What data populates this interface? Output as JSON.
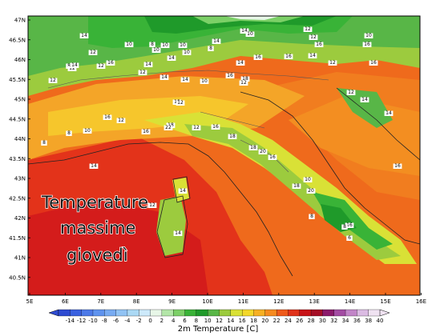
{
  "map": {
    "lat_labels": [
      "47N",
      "46.5N",
      "46N",
      "45.5N",
      "45N",
      "44.5N",
      "44N",
      "43.5N",
      "43N",
      "42.5N",
      "42N",
      "41.5N",
      "41N",
      "40.5N"
    ],
    "lon_labels": [
      "5E",
      "6E",
      "7E",
      "8E",
      "9E",
      "10E",
      "11E",
      "12E",
      "13E",
      "14E",
      "15E",
      "16E"
    ],
    "overlay_lines": [
      "Temperature",
      "massime",
      "giovedì"
    ],
    "stations": [
      {
        "v": "14"
      },
      {
        "v": "12"
      },
      {
        "v": "10"
      },
      {
        "v": "8"
      },
      {
        "v": "10"
      },
      {
        "v": "10"
      },
      {
        "v": "14"
      },
      {
        "v": "10"
      },
      {
        "v": "10"
      },
      {
        "v": "8"
      },
      {
        "v": "14"
      },
      {
        "v": "14"
      },
      {
        "v": "10"
      },
      {
        "v": "12"
      },
      {
        "v": "10"
      },
      {
        "v": "12"
      },
      {
        "v": "16"
      },
      {
        "v": "16"
      },
      {
        "v": "14"
      },
      {
        "v": "16"
      },
      {
        "v": "8"
      },
      {
        "v": "12"
      },
      {
        "v": "12"
      },
      {
        "v": "16"
      },
      {
        "v": "14"
      },
      {
        "v": "12"
      },
      {
        "v": "14"
      },
      {
        "v": "16"
      },
      {
        "v": "12"
      },
      {
        "v": "16"
      },
      {
        "v": "12"
      },
      {
        "v": "14"
      },
      {
        "v": "14"
      },
      {
        "v": "16"
      },
      {
        "v": "18"
      },
      {
        "v": "12"
      },
      {
        "v": "14"
      },
      {
        "v": "10"
      },
      {
        "v": "12"
      },
      {
        "v": "14"
      },
      {
        "v": "14"
      },
      {
        "v": "18"
      },
      {
        "v": "12"
      },
      {
        "v": "16"
      },
      {
        "v": "12"
      },
      {
        "v": "10"
      },
      {
        "v": "8"
      },
      {
        "v": "16"
      },
      {
        "v": "18"
      },
      {
        "v": "22"
      },
      {
        "v": "12"
      },
      {
        "v": "16"
      },
      {
        "v": "18"
      },
      {
        "v": "20"
      },
      {
        "v": "18"
      },
      {
        "v": "16"
      },
      {
        "v": "20"
      },
      {
        "v": "14"
      },
      {
        "v": "8"
      },
      {
        "v": "16"
      },
      {
        "v": "18"
      },
      {
        "v": "10"
      },
      {
        "v": "14"
      },
      {
        "v": "12"
      },
      {
        "v": "14"
      },
      {
        "v": "8"
      },
      {
        "v": "16"
      },
      {
        "v": "6"
      },
      {
        "v": "8"
      }
    ]
  },
  "colorbar": {
    "title": "2m Temperature [C]",
    "ticks": [
      "-14",
      "-12",
      "-10",
      "-8",
      "-6",
      "-4",
      "-2",
      "0",
      "2",
      "4",
      "6",
      "8",
      "10",
      "12",
      "14",
      "16",
      "18",
      "20",
      "22",
      "24",
      "26",
      "28",
      "30",
      "32",
      "34",
      "36",
      "38",
      "40"
    ],
    "colors": [
      "#2e4bd1",
      "#3b62e0",
      "#4d7ae8",
      "#5f93ef",
      "#78abf2",
      "#91c3f4",
      "#abd9f5",
      "#cdeafb",
      "#e8f7e8",
      "#b3e6a8",
      "#7cd067",
      "#39b337",
      "#1f9a2a",
      "#58b647",
      "#9ccb3e",
      "#d9e136",
      "#f4d82a",
      "#f7b023",
      "#f68a1f",
      "#ef5a1a",
      "#e0321a",
      "#c81418",
      "#a50f26",
      "#8b1a6b",
      "#a34ca3",
      "#c285c8",
      "#dbbbe3",
      "#f0e3f2"
    ]
  }
}
